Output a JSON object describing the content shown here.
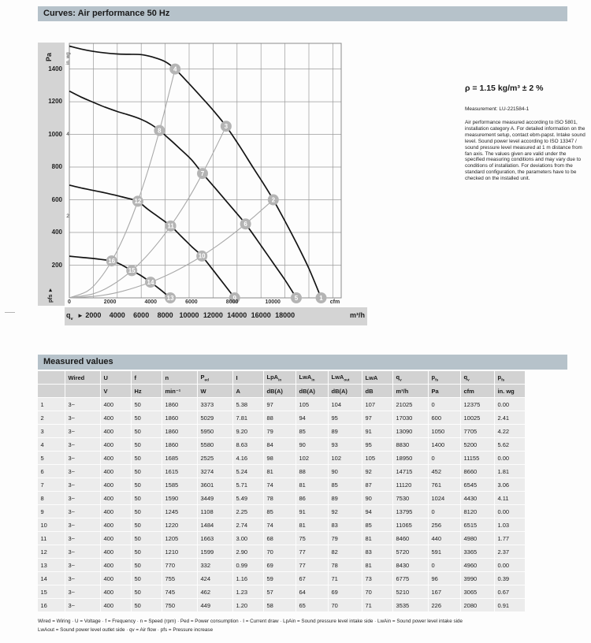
{
  "curves_section": {
    "title": "Curves: Air performance 50 Hz",
    "density_note": "ρ = 1.15 kg/m³ ± 2 %",
    "measurement": "Measurement: LU-221584-1",
    "description": "Air performance measured according to ISO 5801, installation category A. For detailed information on the measurement setup, contact ebm-papst. Intake sound level. Sound power level according to ISO 13347 / sound pressure level measured at 1 m distance from fan axis. The values given are valid under the specified measuring conditions and may vary due to conditions of installation. For deviations from the standard configuration, the parameters have to be checked on the installed unit."
  },
  "chart_data": {
    "type": "line",
    "title": "Curves: Air performance 50 Hz",
    "xlabel_primary": "m³/h",
    "xlabel_secondary": "cfm",
    "ylabel_primary": "Pa",
    "ylabel_secondary": "in. wg",
    "pressure_axis_label": "pfs ►",
    "flow_axis_label": "qv",
    "flow_axis_arrow": "►",
    "xlim_m3h": [
      0,
      22700
    ],
    "ylim_pa": [
      0,
      1557
    ],
    "grid_x_step_m3h": 2000,
    "grid_y_step_pa": 200,
    "pa_ticks": [
      1400,
      1200,
      1000,
      800,
      600,
      400,
      200
    ],
    "inwg_ticks": [
      {
        "label": "4",
        "pa": 996
      },
      {
        "label": "2",
        "pa": 498
      }
    ],
    "cfm_ticks": [
      0,
      2000,
      4000,
      6000,
      8000,
      10000
    ],
    "m3h_ticks": [
      2000,
      4000,
      6000,
      8000,
      10000,
      12000,
      14000,
      16000,
      18000
    ],
    "cfm_to_m3h": 1.699,
    "fan_curves": [
      {
        "name": "fan-curve-1",
        "points": [
          [
            0,
            1540
          ],
          [
            1000,
            1522
          ],
          [
            2000,
            1508
          ],
          [
            3000,
            1498
          ],
          [
            4000,
            1492
          ],
          [
            5000,
            1490
          ],
          [
            6000,
            1488
          ],
          [
            7000,
            1472
          ],
          [
            8000,
            1445
          ],
          [
            8830,
            1400
          ],
          [
            9900,
            1318
          ],
          [
            11000,
            1230
          ],
          [
            12000,
            1148
          ],
          [
            13090,
            1050
          ],
          [
            14200,
            930
          ],
          [
            15400,
            790
          ],
          [
            16200,
            700
          ],
          [
            17030,
            600
          ],
          [
            18000,
            470
          ],
          [
            19000,
            330
          ],
          [
            20000,
            180
          ],
          [
            21025,
            0
          ]
        ]
      },
      {
        "name": "fan-curve-2",
        "points": [
          [
            0,
            1265
          ],
          [
            1000,
            1228
          ],
          [
            2000,
            1196
          ],
          [
            3000,
            1166
          ],
          [
            4000,
            1140
          ],
          [
            5000,
            1118
          ],
          [
            6000,
            1092
          ],
          [
            6800,
            1062
          ],
          [
            7530,
            1024
          ],
          [
            8300,
            975
          ],
          [
            9200,
            915
          ],
          [
            10200,
            845
          ],
          [
            11120,
            761
          ],
          [
            12100,
            678
          ],
          [
            13400,
            566
          ],
          [
            14715,
            452
          ],
          [
            16000,
            320
          ],
          [
            17000,
            215
          ],
          [
            18000,
            110
          ],
          [
            18950,
            0
          ]
        ]
      },
      {
        "name": "fan-curve-3",
        "points": [
          [
            0,
            690
          ],
          [
            1000,
            672
          ],
          [
            2000,
            657
          ],
          [
            3000,
            642
          ],
          [
            4000,
            625
          ],
          [
            5000,
            607
          ],
          [
            5720,
            591
          ],
          [
            6500,
            545
          ],
          [
            7500,
            492
          ],
          [
            8460,
            440
          ],
          [
            9300,
            380
          ],
          [
            10200,
            315
          ],
          [
            11065,
            256
          ],
          [
            12000,
            170
          ],
          [
            12900,
            85
          ],
          [
            13795,
            0
          ]
        ]
      },
      {
        "name": "fan-curve-4",
        "points": [
          [
            0,
            255
          ],
          [
            1000,
            248
          ],
          [
            2000,
            241
          ],
          [
            3000,
            232
          ],
          [
            3535,
            226
          ],
          [
            4200,
            208
          ],
          [
            5210,
            167
          ],
          [
            5900,
            140
          ],
          [
            6775,
            96
          ],
          [
            7600,
            50
          ],
          [
            8430,
            0
          ]
        ]
      }
    ],
    "system_curves": [
      {
        "name": "system-curve-a",
        "points": [
          [
            0,
            0
          ],
          [
            1500,
            41
          ],
          [
            2500,
            113
          ],
          [
            3535,
            226
          ],
          [
            4500,
            366
          ],
          [
            5500,
            547
          ],
          [
            6500,
            764
          ],
          [
            7500,
            1017
          ],
          [
            8200,
            1216
          ],
          [
            8830,
            1400
          ]
        ]
      },
      {
        "name": "system-curve-b",
        "points": [
          [
            0,
            0
          ],
          [
            2000,
            25
          ],
          [
            3500,
            75
          ],
          [
            5210,
            167
          ],
          [
            6500,
            260
          ],
          [
            7500,
            346
          ],
          [
            8460,
            440
          ],
          [
            9500,
            555
          ],
          [
            10500,
            678
          ],
          [
            11800,
            857
          ],
          [
            13090,
            1050
          ]
        ]
      },
      {
        "name": "system-curve-c",
        "points": [
          [
            0,
            0
          ],
          [
            2500,
            13
          ],
          [
            4500,
            42
          ],
          [
            6775,
            96
          ],
          [
            8500,
            151
          ],
          [
            10000,
            209
          ],
          [
            11065,
            256
          ],
          [
            12500,
            327
          ],
          [
            14000,
            410
          ],
          [
            15500,
            502
          ],
          [
            17030,
            600
          ]
        ]
      }
    ],
    "operating_points": [
      {
        "n": "1",
        "q_m3h": 21025,
        "p_pa": 0
      },
      {
        "n": "2",
        "q_m3h": 17030,
        "p_pa": 600
      },
      {
        "n": "3",
        "q_m3h": 13090,
        "p_pa": 1050
      },
      {
        "n": "4",
        "q_m3h": 8830,
        "p_pa": 1400
      },
      {
        "n": "5",
        "q_m3h": 18950,
        "p_pa": 0
      },
      {
        "n": "6",
        "q_m3h": 14715,
        "p_pa": 452
      },
      {
        "n": "7",
        "q_m3h": 11120,
        "p_pa": 761
      },
      {
        "n": "8",
        "q_m3h": 7530,
        "p_pa": 1024
      },
      {
        "n": "9",
        "q_m3h": 13795,
        "p_pa": 0
      },
      {
        "n": "10",
        "q_m3h": 11065,
        "p_pa": 256
      },
      {
        "n": "11",
        "q_m3h": 8460,
        "p_pa": 440
      },
      {
        "n": "12",
        "q_m3h": 5720,
        "p_pa": 591
      },
      {
        "n": "13",
        "q_m3h": 8430,
        "p_pa": 0
      },
      {
        "n": "14",
        "q_m3h": 6775,
        "p_pa": 96
      },
      {
        "n": "15",
        "q_m3h": 5210,
        "p_pa": 167
      },
      {
        "n": "16",
        "q_m3h": 3535,
        "p_pa": 226
      }
    ],
    "colors": {
      "fan_curve": "#141414",
      "system_curve": "#a9a9a9",
      "marker_fill": "#b4b4b4",
      "marker_text": "#ffffff",
      "grid": "#9b9b9b",
      "frame": "#8a8a8a"
    }
  },
  "measured_section": {
    "title": "Measured values",
    "table": {
      "col_headers": [
        {
          "t": "",
          "s": ""
        },
        {
          "t": "Wired",
          "s": ""
        },
        {
          "t": "U",
          "s": ""
        },
        {
          "t": "f",
          "s": ""
        },
        {
          "t": "n",
          "s": ""
        },
        {
          "t": "P",
          "s": "ed"
        },
        {
          "t": "I",
          "s": ""
        },
        {
          "t": "LpA",
          "s": "in"
        },
        {
          "t": "LwA",
          "s": "in"
        },
        {
          "t": "LwA",
          "s": "out"
        },
        {
          "t": "LwA",
          "s": ""
        },
        {
          "t": "q",
          "s": "v"
        },
        {
          "t": "p",
          "s": "fs"
        },
        {
          "t": "q",
          "s": "v"
        },
        {
          "t": "p",
          "s": "fs"
        }
      ],
      "units": [
        "",
        "",
        "V",
        "Hz",
        "min⁻¹",
        "W",
        "A",
        "dB(A)",
        "dB(A)",
        "dB(A)",
        "dB",
        "m³/h",
        "Pa",
        "cfm",
        "in. wg"
      ],
      "rows": [
        [
          "1",
          "3~",
          "400",
          "50",
          "1860",
          "3373",
          "5.38",
          "97",
          "105",
          "104",
          "107",
          "21025",
          "0",
          "12375",
          "0.00"
        ],
        [
          "2",
          "3~",
          "400",
          "50",
          "1860",
          "5029",
          "7.81",
          "88",
          "94",
          "95",
          "97",
          "17030",
          "600",
          "10025",
          "2.41"
        ],
        [
          "3",
          "3~",
          "400",
          "50",
          "1860",
          "5950",
          "9.20",
          "79",
          "85",
          "89",
          "91",
          "13090",
          "1050",
          "7705",
          "4.22"
        ],
        [
          "4",
          "3~",
          "400",
          "50",
          "1860",
          "5580",
          "8.63",
          "84",
          "90",
          "93",
          "95",
          "8830",
          "1400",
          "5200",
          "5.62"
        ],
        [
          "5",
          "3~",
          "400",
          "50",
          "1685",
          "2525",
          "4.16",
          "98",
          "102",
          "102",
          "105",
          "18950",
          "0",
          "11155",
          "0.00"
        ],
        [
          "6",
          "3~",
          "400",
          "50",
          "1615",
          "3274",
          "5.24",
          "81",
          "88",
          "90",
          "92",
          "14715",
          "452",
          "8660",
          "1.81"
        ],
        [
          "7",
          "3~",
          "400",
          "50",
          "1585",
          "3601",
          "5.71",
          "74",
          "81",
          "85",
          "87",
          "11120",
          "761",
          "6545",
          "3.06"
        ],
        [
          "8",
          "3~",
          "400",
          "50",
          "1590",
          "3449",
          "5.49",
          "78",
          "86",
          "89",
          "90",
          "7530",
          "1024",
          "4430",
          "4.11"
        ],
        [
          "9",
          "3~",
          "400",
          "50",
          "1245",
          "1108",
          "2.25",
          "85",
          "91",
          "92",
          "94",
          "13795",
          "0",
          "8120",
          "0.00"
        ],
        [
          "10",
          "3~",
          "400",
          "50",
          "1220",
          "1484",
          "2.74",
          "74",
          "81",
          "83",
          "85",
          "11065",
          "256",
          "6515",
          "1.03"
        ],
        [
          "11",
          "3~",
          "400",
          "50",
          "1205",
          "1663",
          "3.00",
          "68",
          "75",
          "79",
          "81",
          "8460",
          "440",
          "4980",
          "1.77"
        ],
        [
          "12",
          "3~",
          "400",
          "50",
          "1210",
          "1599",
          "2.90",
          "70",
          "77",
          "82",
          "83",
          "5720",
          "591",
          "3365",
          "2.37"
        ],
        [
          "13",
          "3~",
          "400",
          "50",
          "770",
          "332",
          "0.99",
          "69",
          "77",
          "78",
          "81",
          "8430",
          "0",
          "4960",
          "0.00"
        ],
        [
          "14",
          "3~",
          "400",
          "50",
          "755",
          "424",
          "1.16",
          "59",
          "67",
          "71",
          "73",
          "6775",
          "96",
          "3990",
          "0.39"
        ],
        [
          "15",
          "3~",
          "400",
          "50",
          "745",
          "462",
          "1.23",
          "57",
          "64",
          "69",
          "70",
          "5210",
          "167",
          "3065",
          "0.67"
        ],
        [
          "16",
          "3~",
          "400",
          "50",
          "750",
          "449",
          "1.20",
          "58",
          "65",
          "70",
          "71",
          "3535",
          "226",
          "2080",
          "0.91"
        ]
      ]
    },
    "footnote1": "Wired = Wiring · U = Voltage · f = Frequency · n = Speed (rpm) · Ped = Power consumption · I = Current draw · LpAin = Sound pressure level intake side · LwAin = Sound power level intake side",
    "footnote2": "LwAout = Sound power level outlet side · qv = Air flow · pfs = Pressure increase"
  }
}
